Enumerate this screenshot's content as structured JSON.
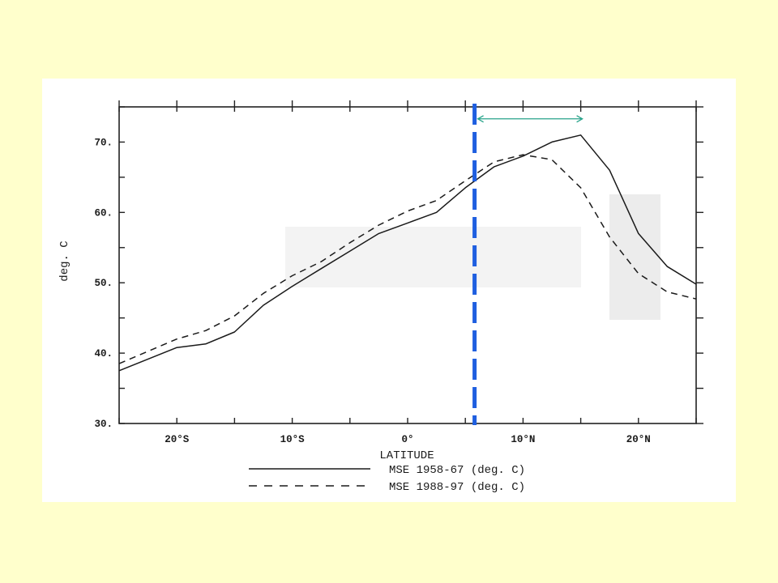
{
  "chart_data": {
    "type": "line",
    "xlabel": "LATITUDE",
    "ylabel": "deg. C",
    "xlim": [
      -25,
      25
    ],
    "ylim": [
      30,
      75
    ],
    "x_ticks": [
      {
        "value": -20,
        "label": "20°S"
      },
      {
        "value": -10,
        "label": "10°S"
      },
      {
        "value": 0,
        "label": "0°"
      },
      {
        "value": 10,
        "label": "10°N"
      },
      {
        "value": 20,
        "label": "20°N"
      }
    ],
    "y_ticks": [
      {
        "value": 30,
        "label": "30."
      },
      {
        "value": 40,
        "label": "40."
      },
      {
        "value": 50,
        "label": "50."
      },
      {
        "value": 60,
        "label": "60."
      },
      {
        "value": 70,
        "label": "70."
      }
    ],
    "grid": false,
    "legend_position": "bottom",
    "series": [
      {
        "name": "MSE 1958-67 (deg. C)",
        "style": "solid",
        "color": "#1a1a1a",
        "x": [
          -25,
          -20,
          -17.5,
          -15,
          -12.5,
          -10,
          -7.5,
          -5,
          -2.5,
          0,
          2.5,
          5,
          7.5,
          10,
          12.5,
          15,
          17.5,
          20,
          22.5,
          25
        ],
        "y": [
          37.5,
          40.8,
          41.3,
          43.0,
          46.8,
          49.5,
          52.0,
          54.5,
          57.0,
          58.5,
          60.0,
          63.5,
          66.5,
          68.0,
          70.0,
          71.0,
          66.0,
          57.0,
          52.3,
          49.8
        ]
      },
      {
        "name": "MSE 1988-97 (deg. C)",
        "style": "dashed",
        "color": "#1a1a1a",
        "x": [
          -25,
          -20,
          -17.5,
          -15,
          -12.5,
          -10,
          -7.5,
          -5,
          -2.5,
          0,
          2.5,
          5,
          7.5,
          10,
          12.5,
          15,
          17.5,
          20,
          22.5,
          25
        ],
        "y": [
          38.5,
          42.0,
          43.2,
          45.3,
          48.5,
          51.0,
          53.0,
          55.7,
          58.2,
          60.2,
          61.7,
          64.5,
          67.2,
          68.2,
          67.5,
          63.5,
          56.5,
          51.3,
          48.7,
          47.7
        ]
      }
    ],
    "annotations": [
      {
        "kind": "vertical-line",
        "x": 5.8,
        "color": "#1f5fe0",
        "style": "thick-dashed"
      },
      {
        "kind": "double-arrow",
        "x_start": 5.8,
        "x_end": 15,
        "y": 73.3,
        "color": "#27a38a"
      }
    ]
  }
}
